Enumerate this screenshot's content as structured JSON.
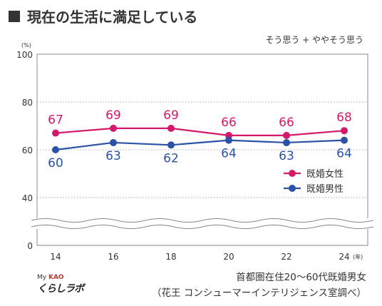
{
  "title": "現在の生活に満足している",
  "chart_data": {
    "type": "line",
    "subtitle": "そう思う + ややそう思う",
    "y_unit": "(%)",
    "x_unit": "(年)",
    "x": [
      14,
      16,
      18,
      20,
      22,
      24
    ],
    "y_ticks": [
      0,
      40,
      60,
      80,
      100
    ],
    "ylim": [
      0,
      100
    ],
    "y_axis_break": [
      0,
      40
    ],
    "grid": true,
    "legend_position": "right",
    "series": [
      {
        "name": "既婚女性",
        "color": "#d6186a",
        "values": [
          67,
          69,
          69,
          66,
          66,
          68
        ]
      },
      {
        "name": "既婚男性",
        "color": "#2b52a6",
        "values": [
          60,
          63,
          62,
          64,
          63,
          64
        ]
      }
    ]
  },
  "footer": {
    "line1": "首都圏在住20〜60代既婚男女",
    "line2": "（花王 コンシューマーインテリジェンス室調べ）"
  },
  "logo": {
    "top_small": "My",
    "top_brand": "KAO",
    "main": "くらしラボ"
  }
}
